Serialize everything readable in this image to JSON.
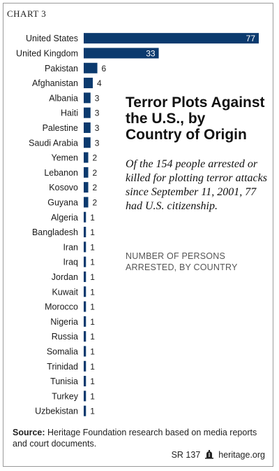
{
  "chart_label": "CHART 3",
  "title": "Terror Plots Against the U.S., by Country of Origin",
  "subtitle": "Of the 154 people arrested or killed for plotting terror attacks since September 11, 2001, 77 had U.S. citizenship.",
  "axis_note": "NUMBER OF PERSONS ARRESTED, BY COUNTRY",
  "source_label": "Source:",
  "source_text": "Heritage Foundation research based on media reports and court documents.",
  "report_id": "SR 137",
  "site": "heritage.org",
  "icon": "liberty-bell-icon",
  "colors": {
    "bar": "#0b3a6e"
  },
  "chart_data": {
    "type": "bar",
    "orientation": "horizontal",
    "categories": [
      "United States",
      "United Kingdom",
      "Pakistan",
      "Afghanistan",
      "Albania",
      "Haiti",
      "Palestine",
      "Saudi Arabia",
      "Yemen",
      "Lebanon",
      "Kosovo",
      "Guyana",
      "Algeria",
      "Bangladesh",
      "Iran",
      "Iraq",
      "Jordan",
      "Kuwait",
      "Morocco",
      "Nigeria",
      "Russia",
      "Somalia",
      "Trinidad",
      "Tunisia",
      "Turkey",
      "Uzbekistan"
    ],
    "values": [
      77,
      33,
      6,
      4,
      3,
      3,
      3,
      3,
      2,
      2,
      2,
      2,
      1,
      1,
      1,
      1,
      1,
      1,
      1,
      1,
      1,
      1,
      1,
      1,
      1,
      1
    ],
    "xlim": [
      0,
      77
    ],
    "grid": false,
    "legend": "none",
    "data_labels": true
  }
}
